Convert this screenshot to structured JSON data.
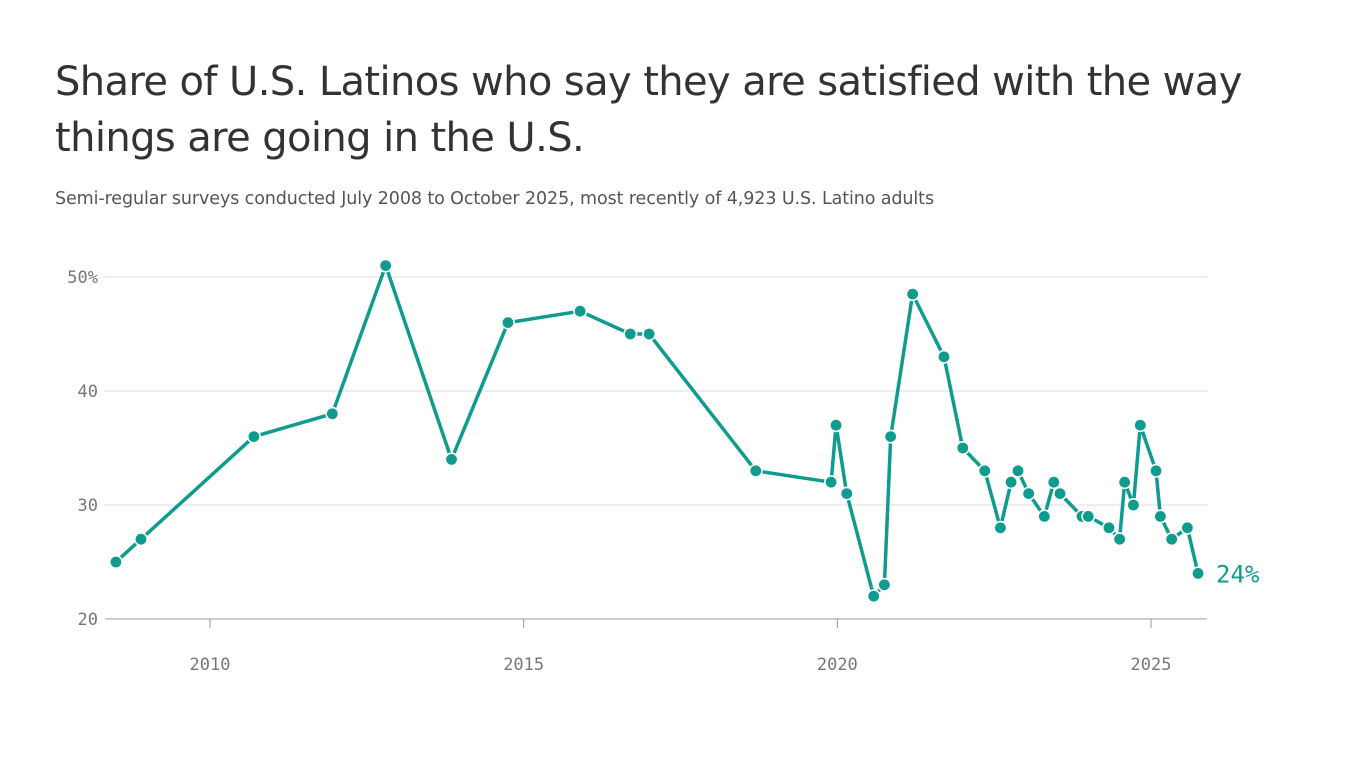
{
  "header": {
    "title": "Share of U.S. Latinos who say they are satisfied with the way things are going in the U.S.",
    "subtitle": "Semi-regular surveys conducted July 2008 to October 2025, most recently of 4,923 U.S. Latino adults"
  },
  "colors": {
    "line": "#0f9c8e",
    "grid": "#dddddd",
    "axis": "#999999",
    "tick_text": "#777777"
  },
  "chart_data": {
    "type": "line",
    "title": "Share of U.S. Latinos who say they are satisfied with the way things are going in the U.S.",
    "subtitle": "Semi-regular surveys conducted July 2008 to October 2025, most recently of 4,923 U.S. Latino adults",
    "xlabel": "",
    "ylabel": "",
    "xlim": [
      2007.5,
      2025.9
    ],
    "ylim": [
      20,
      51
    ],
    "grid": true,
    "y_ticks": [
      {
        "value": 50,
        "label": "50%"
      },
      {
        "value": 40,
        "label": "40"
      },
      {
        "value": 30,
        "label": "30"
      },
      {
        "value": 20,
        "label": "20"
      }
    ],
    "x_ticks": [
      {
        "value": 2010,
        "label": "2010"
      },
      {
        "value": 2015,
        "label": "2015"
      },
      {
        "value": 2020,
        "label": "2020"
      },
      {
        "value": 2025,
        "label": "2025"
      }
    ],
    "end_label": "24%",
    "series": [
      {
        "x": [
          2008.5,
          2008.9,
          2010.7,
          2011.95,
          2012.8,
          2013.85,
          2014.75,
          2015.9,
          2016.7,
          2017.0,
          2018.7,
          2019.9,
          2019.98,
          2020.15,
          2020.58,
          2020.75,
          2020.85,
          2021.2,
          2021.7,
          2022.0,
          2022.35,
          2022.6,
          2022.77,
          2022.88,
          2023.05,
          2023.3,
          2023.45,
          2023.55,
          2023.9,
          2024.0,
          2024.33,
          2024.5,
          2024.58,
          2024.72,
          2024.83,
          2025.08,
          2025.15,
          2025.33,
          2025.58,
          2025.75
        ],
        "y": [
          25,
          27,
          36,
          38,
          51,
          34,
          46,
          47,
          45,
          45,
          33,
          32,
          37,
          31,
          22,
          23,
          36,
          48.5,
          43,
          35,
          33,
          28,
          32,
          33,
          31,
          29,
          32,
          31,
          29,
          29,
          28,
          27,
          32,
          30,
          37,
          33,
          29,
          27,
          28,
          24
        ]
      }
    ]
  }
}
